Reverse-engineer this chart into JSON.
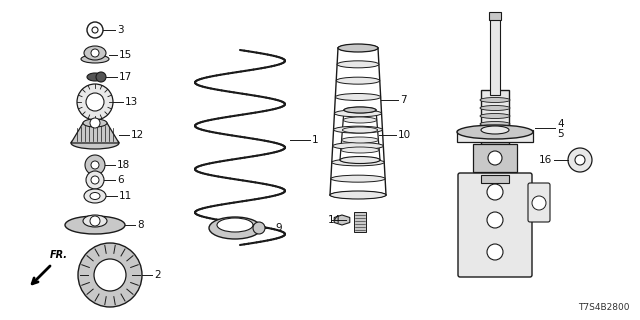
{
  "bg_color": "#ffffff",
  "diagram_code": "T7S4B2800",
  "line_color": "#1a1a1a",
  "text_color": "#111111",
  "gray_fill": "#c8c8c8",
  "dark_fill": "#555555",
  "light_fill": "#e8e8e8"
}
